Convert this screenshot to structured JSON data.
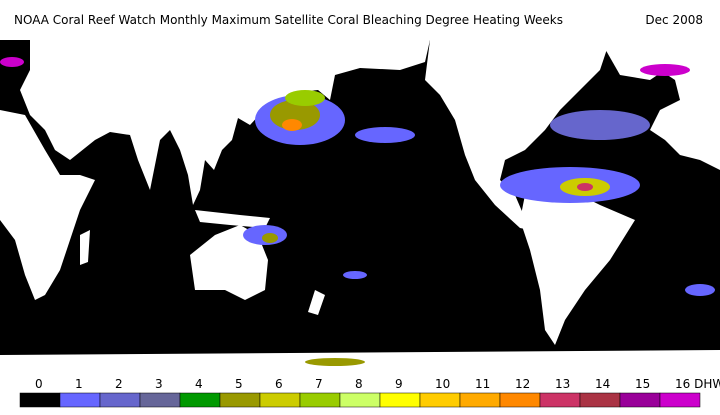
{
  "header": {
    "title": "NOAA Coral Reef Watch Monthly Maximum Satellite Coral Bleaching Degree Heating Weeks",
    "date": "Dec 2008"
  },
  "legend": {
    "items": [
      {
        "label": "0",
        "color": "#000000"
      },
      {
        "label": "1",
        "color": "#6666ff"
      },
      {
        "label": "2",
        "color": "#6666cc"
      },
      {
        "label": "3",
        "color": "#666699"
      },
      {
        "label": "4",
        "color": "#009900"
      },
      {
        "label": "5",
        "color": "#999900"
      },
      {
        "label": "6",
        "color": "#cccc00"
      },
      {
        "label": "7",
        "color": "#99cc00"
      },
      {
        "label": "8",
        "color": "#ccff66"
      },
      {
        "label": "9",
        "color": "#ffff00"
      },
      {
        "label": "10",
        "color": "#ffcc00"
      },
      {
        "label": "11",
        "color": "#ffaa00"
      },
      {
        "label": "12",
        "color": "#ff8800"
      },
      {
        "label": "13",
        "color": "#cc3366"
      },
      {
        "label": "14",
        "color": "#aa3344"
      },
      {
        "label": "15",
        "color": "#990099"
      },
      {
        "label": "16 DHW",
        "color": "#cc00cc"
      }
    ]
  }
}
